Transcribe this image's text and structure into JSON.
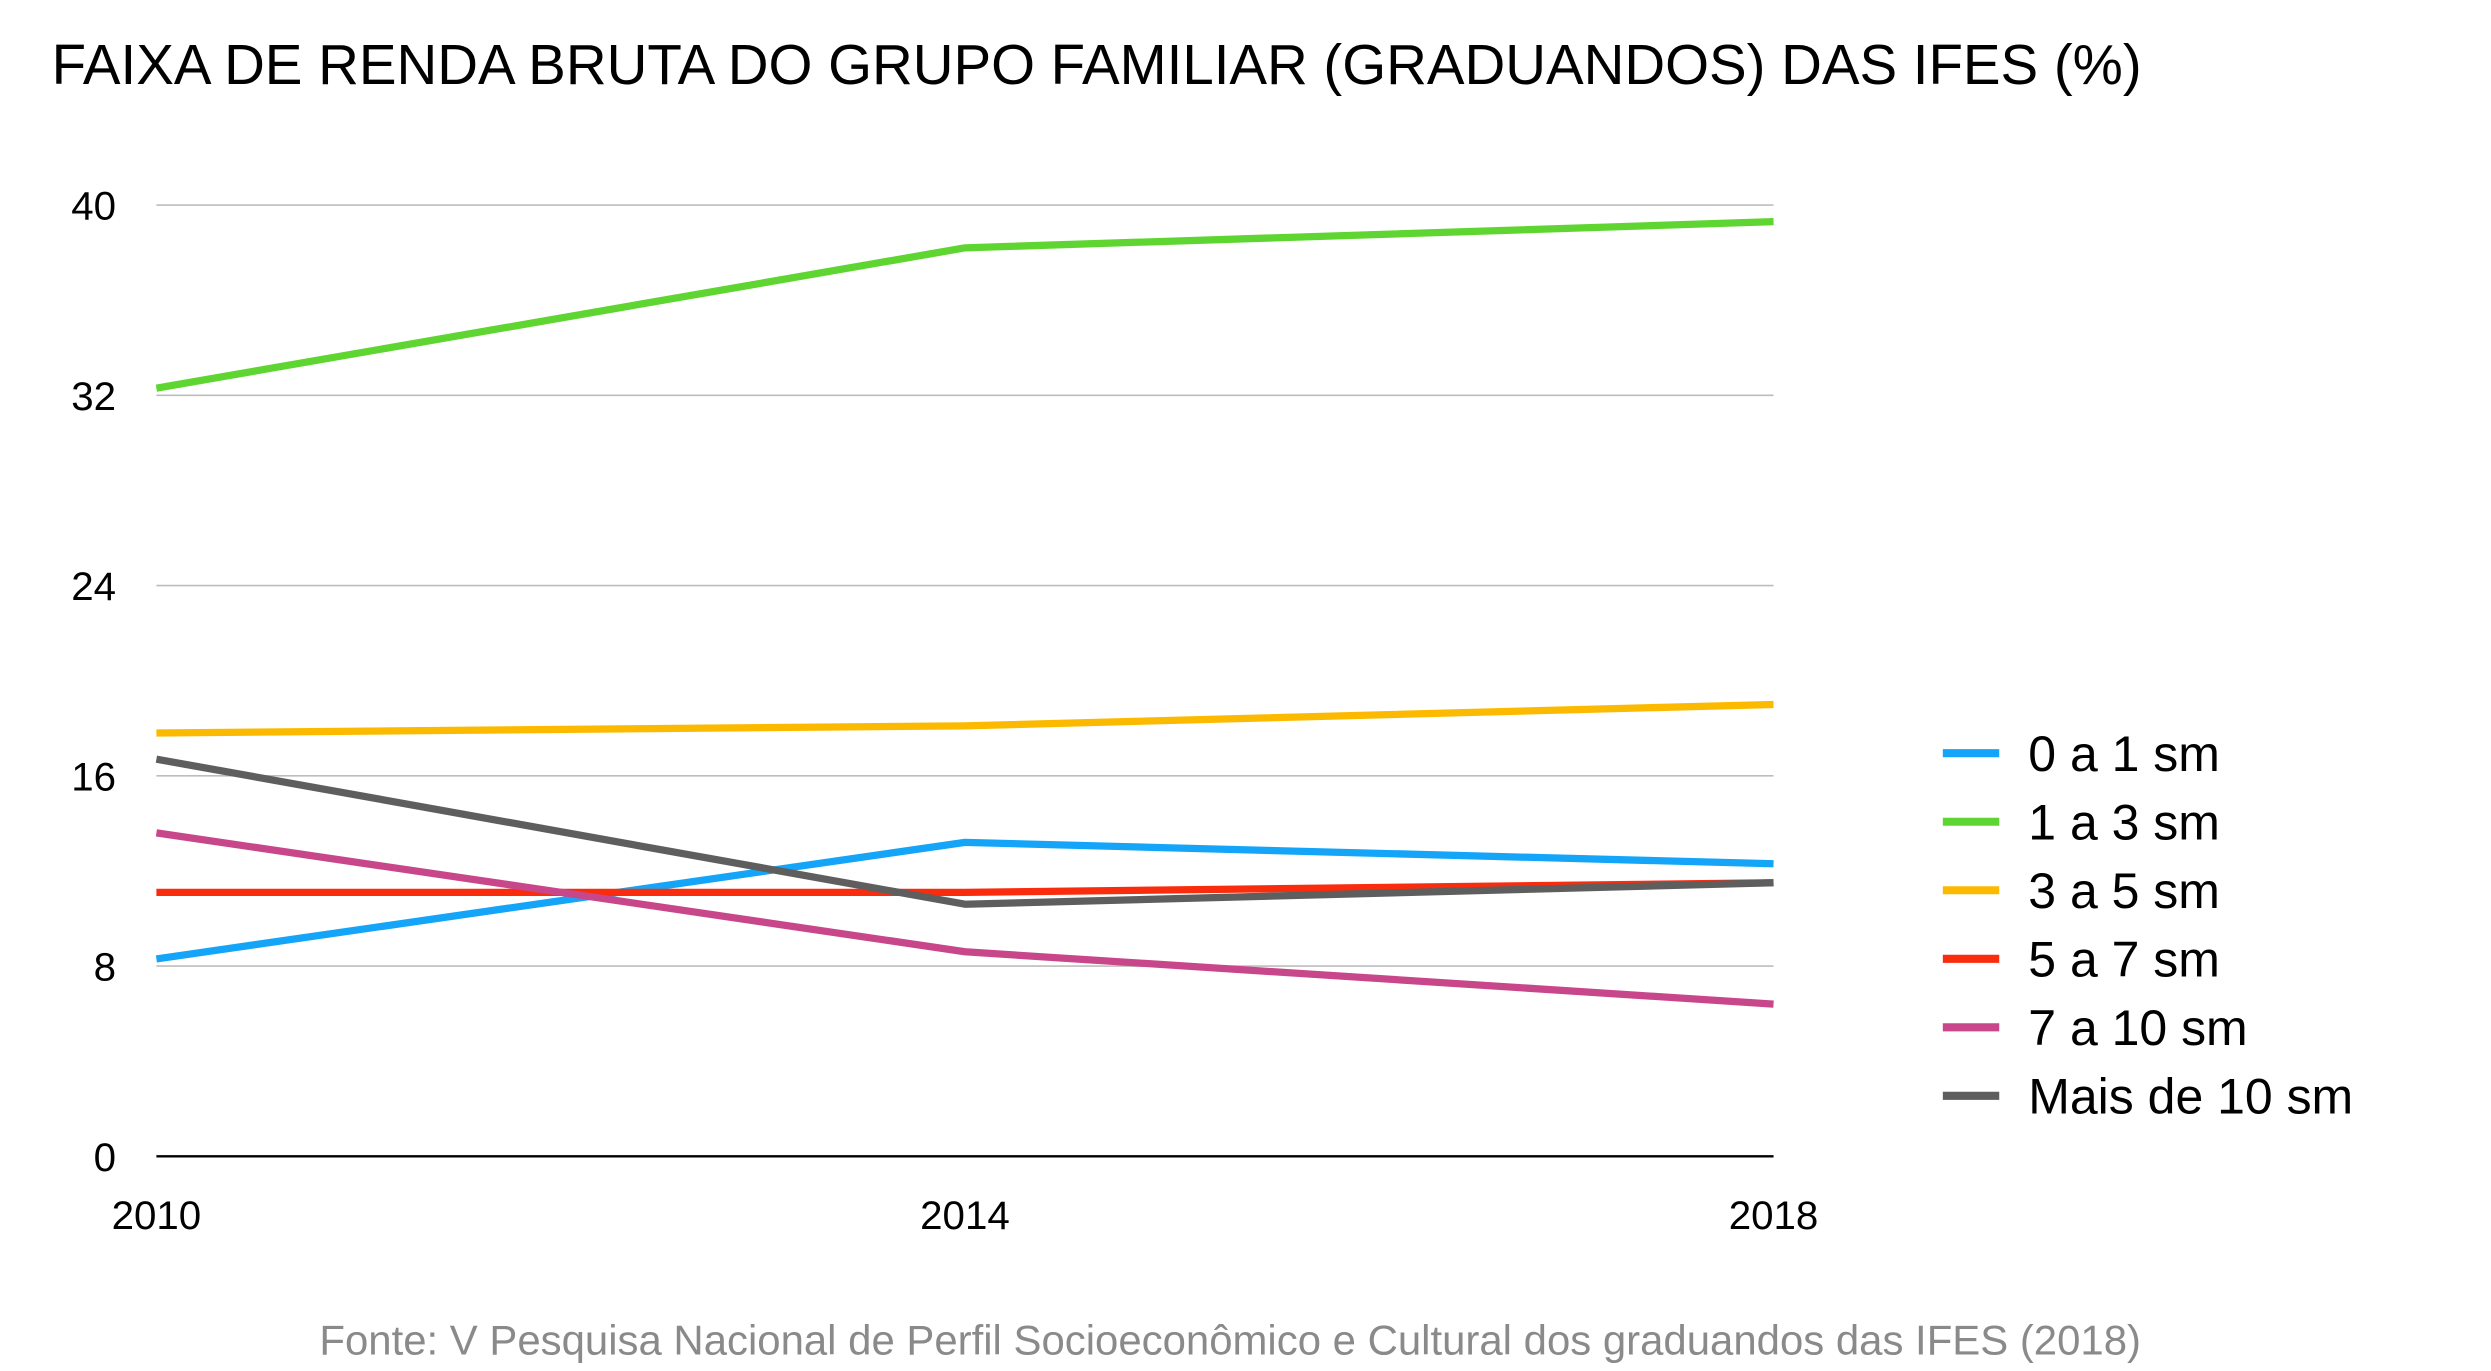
{
  "chart_data": {
    "type": "line",
    "title": "FAIXA DE RENDA BRUTA DO GRUPO FAMILIAR (GRADUANDOS) DAS IFES (%)",
    "xlabel": "",
    "ylabel": "",
    "x": [
      "2010",
      "2014",
      "2018"
    ],
    "ylim": [
      0,
      40
    ],
    "yticks": [
      "0",
      "8",
      "16",
      "24",
      "32",
      "40"
    ],
    "grid": true,
    "legend_position": "right",
    "series": [
      {
        "name": "0 a 1 sm",
        "color": "#14A5F8",
        "values": [
          8.3,
          13.2,
          12.3
        ]
      },
      {
        "name": "1 a 3 sm",
        "color": "#5ED531",
        "values": [
          32.3,
          38.2,
          39.3
        ]
      },
      {
        "name": "3 a 5 sm",
        "color": "#FBBA00",
        "values": [
          17.8,
          18.1,
          19.0
        ]
      },
      {
        "name": "5 a 7 sm",
        "color": "#F92C0E",
        "values": [
          11.1,
          11.1,
          11.5
        ]
      },
      {
        "name": "7 a 10 sm",
        "color": "#C8478A",
        "values": [
          13.6,
          8.6,
          6.4
        ]
      },
      {
        "name": "Mais de 10 sm",
        "color": "#5E5E5E",
        "values": [
          16.7,
          10.6,
          11.5
        ]
      }
    ],
    "source": "Fonte: V Pesquisa Nacional de Perfil Socioeconômico e Cultural dos graduandos das IFES (2018)"
  }
}
